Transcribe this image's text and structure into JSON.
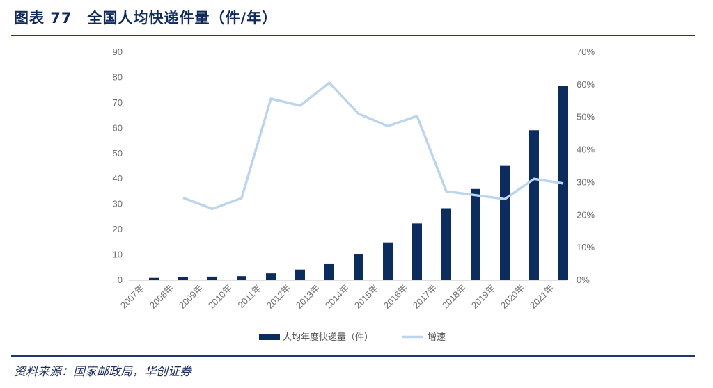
{
  "header": {
    "title": "图表 77　全国人均快递件量（件/年）"
  },
  "source": "资料来源：国家邮政局，华创证券",
  "colors": {
    "bar": "#0c2c5e",
    "line": "#bcd5ec",
    "rule": "#1f3a6b",
    "title": "#0f2a5a"
  },
  "chart_data": {
    "type": "bar",
    "categories": [
      "2007年",
      "2008年",
      "2009年",
      "2010年",
      "2011年",
      "2012年",
      "2013年",
      "2014年",
      "2015年",
      "2016年",
      "2017年",
      "2018年",
      "2019年",
      "2020年",
      "2021年"
    ],
    "series": [
      {
        "name": "人均年度快递量（件）",
        "type": "bar",
        "axis": "left",
        "values": [
          0.9,
          1.1,
          1.4,
          1.6,
          2.7,
          4.2,
          6.6,
          10.2,
          14.9,
          22.4,
          28.4,
          36.0,
          45.1,
          59.2,
          76.8
        ]
      },
      {
        "name": "增速",
        "type": "line",
        "axis": "right",
        "values": [
          null,
          25.3,
          21.9,
          25.2,
          55.7,
          53.6,
          60.6,
          51.1,
          47.3,
          50.4,
          27.3,
          26.1,
          24.9,
          31.1,
          29.7
        ]
      }
    ],
    "yleft": {
      "lim": [
        0,
        90
      ],
      "ticks": [
        "0",
        "10",
        "20",
        "30",
        "40",
        "50",
        "60",
        "70",
        "80",
        "90"
      ]
    },
    "yright": {
      "lim": [
        0,
        70
      ],
      "ticks": [
        "0%",
        "10%",
        "20%",
        "30%",
        "40%",
        "50%",
        "60%",
        "70%"
      ]
    },
    "legend": {
      "position": "bottom",
      "items": [
        "人均年度快递量（件）",
        "增速"
      ]
    }
  }
}
